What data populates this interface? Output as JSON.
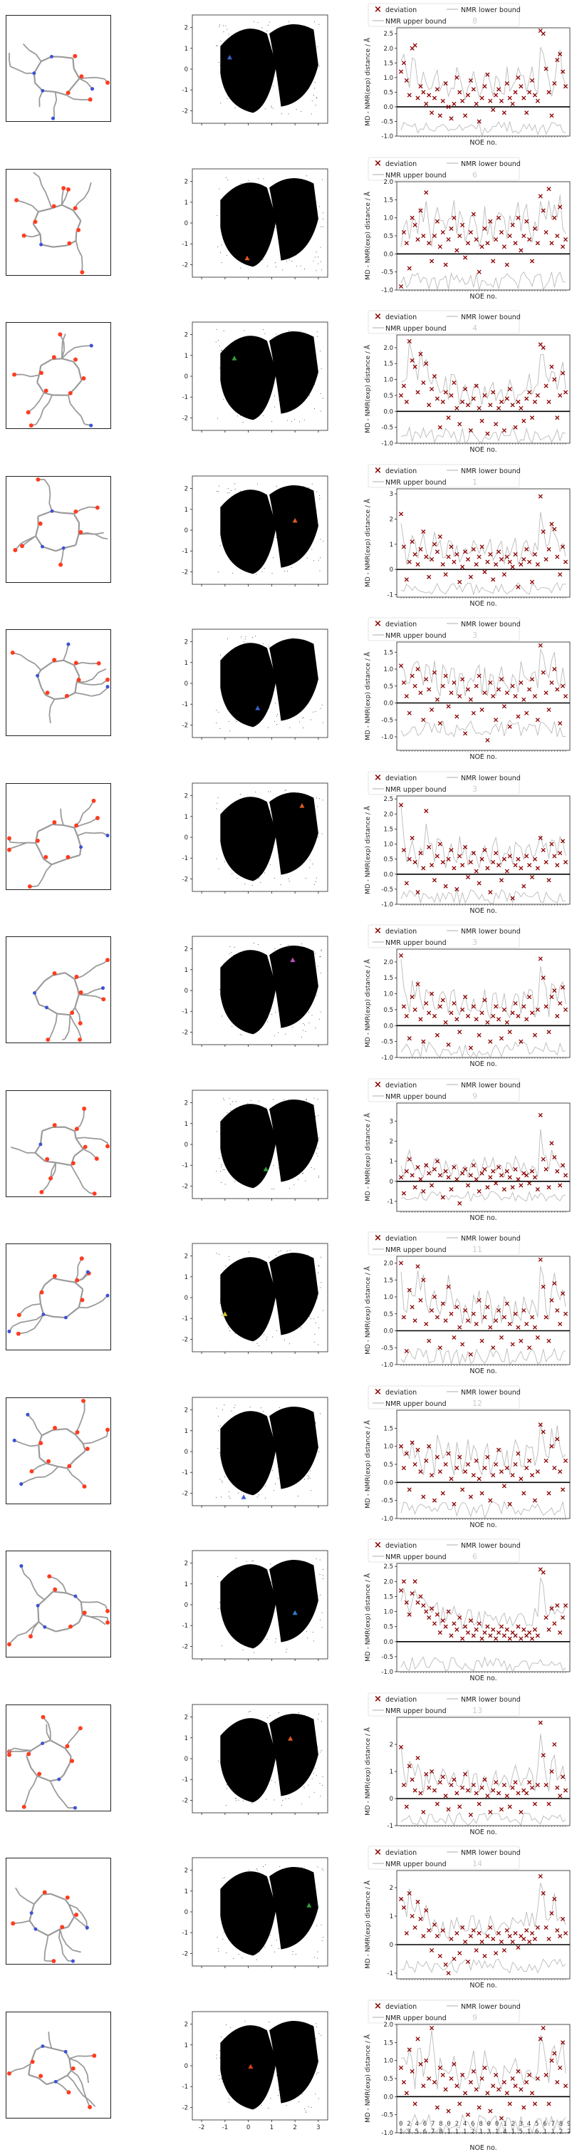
{
  "colors": {
    "deviation": "#8b0000",
    "bound_line": "#bbbbbb",
    "zero_line": "#000000",
    "density": "#000000",
    "atom_red": "#ff3b1f",
    "atom_blue": "#3d52d5",
    "bond": "#9a9a9a"
  },
  "legend": {
    "deviation": "deviation",
    "lower": "NMR lower bound",
    "upper": "NMR upper bound"
  },
  "axes": {
    "noe_xlabel": "NOE no.",
    "noe_ylabel": "MD - NMR(exp) distance / Å"
  },
  "fes_ticks_y": [
    "2",
    "1",
    "0",
    "-1",
    "-2"
  ],
  "fes_ticks_x": [
    "-2",
    "-1",
    "0",
    "1",
    "2",
    "3"
  ],
  "last_xtick_rows": [
    "0 2 4 6 7 8 0 2 4 6 8 0 0 1 2 3 4 5 6 7 8 9 1 1 2 2 2 2 2 2 2 7 7 8 0 0",
    "1 3 5 6 7 8 1 1 1 2 1 3 1 4 1 5 1 6 1 1 2 2 2 2 2 2 2 7 7 2 8 0 0"
  ],
  "chart_data": [
    {
      "type": "scatter",
      "panel": 1,
      "title_overlay": "8",
      "marker_color": "#3a62c9",
      "marker_xy": [
        -0.8,
        0.55
      ],
      "ylim": [
        -1.0,
        2.7
      ],
      "yticks": [
        "2.5",
        "2.0",
        "1.5",
        "1.0",
        "0.5",
        "0.0",
        "-0.5",
        "-1.0"
      ],
      "deviation": [
        1.2,
        1.5,
        0.9,
        0.4,
        2.0,
        2.1,
        0.3,
        0.7,
        0.5,
        0.1,
        0.4,
        -0.2,
        0.3,
        0.6,
        -0.3,
        0.2,
        0.8,
        0.0,
        -0.4,
        0.1,
        1.0,
        0.5,
        0.2,
        -0.3,
        0.4,
        0.9,
        0.6,
        0.1,
        -0.5,
        0.3,
        0.7,
        1.1,
        0.2,
        -0.1,
        0.4,
        0.6,
        0.2,
        -0.2,
        0.8,
        0.3,
        0.1,
        0.5,
        1.0,
        0.7,
        0.3,
        -0.2,
        0.5,
        0.9,
        0.4,
        0.2,
        2.6,
        2.5,
        1.3,
        0.5,
        -0.3,
        0.8,
        1.6,
        1.8,
        1.2,
        0.7
      ]
    },
    {
      "type": "scatter",
      "panel": 2,
      "title_overlay": "6",
      "marker_color": "#e05a20",
      "marker_xy": [
        -0.05,
        -1.7
      ],
      "ylim": [
        -1.0,
        2.0
      ],
      "yticks": [
        "2.0",
        "1.5",
        "1.0",
        "0.5",
        "0.0",
        "-0.5",
        "-1.0"
      ],
      "deviation": [
        -0.9,
        0.6,
        0.3,
        -0.4,
        1.0,
        0.8,
        0.4,
        1.2,
        0.5,
        1.7,
        0.3,
        -0.2,
        0.5,
        0.9,
        0.2,
        0.6,
        -0.3,
        0.4,
        0.7,
        1.0,
        0.1,
        0.5,
        0.8,
        -0.1,
        0.3,
        0.6,
        1.1,
        0.4,
        -0.5,
        0.2,
        0.7,
        0.3,
        0.9,
        -0.2,
        0.4,
        1.0,
        0.6,
        0.2,
        -0.3,
        0.5,
        0.8,
        0.3,
        1.0,
        0.1,
        0.5,
        0.9,
        0.4,
        -0.2,
        0.7,
        0.3,
        1.6,
        1.2,
        0.6,
        1.8,
        0.3,
        1.0,
        0.5,
        1.3,
        0.2,
        0.4
      ]
    },
    {
      "type": "scatter",
      "panel": 3,
      "title_overlay": "4",
      "marker_color": "#2ea03a",
      "marker_xy": [
        -0.6,
        0.85
      ],
      "ylim": [
        -1.0,
        2.4
      ],
      "yticks": [
        "2.0",
        "1.5",
        "1.0",
        "0.5",
        "0.0",
        "-0.5",
        "-1.0"
      ],
      "deviation": [
        0.5,
        0.8,
        0.3,
        2.2,
        1.6,
        1.4,
        0.6,
        1.8,
        0.9,
        1.5,
        0.2,
        0.7,
        1.1,
        0.4,
        -0.5,
        0.3,
        0.6,
        -0.2,
        0.5,
        0.9,
        0.1,
        -0.4,
        0.3,
        0.7,
        0.2,
        -0.6,
        0.4,
        0.8,
        0.1,
        -0.3,
        0.5,
        -0.7,
        0.2,
        0.6,
        -0.4,
        0.1,
        0.3,
        -0.6,
        0.4,
        0.7,
        0.2,
        -0.5,
        0.3,
        0.1,
        -0.3,
        0.4,
        0.6,
        -0.2,
        0.3,
        0.5,
        2.1,
        2.0,
        0.8,
        0.3,
        1.4,
        1.0,
        -0.2,
        0.5,
        1.2,
        0.6
      ]
    },
    {
      "type": "scatter",
      "panel": 4,
      "title_overlay": "1",
      "marker_color": "#e05a20",
      "marker_xy": [
        2.0,
        0.45
      ],
      "ylim": [
        -1.1,
        3.2
      ],
      "yticks": [
        "3",
        "2",
        "1",
        "0",
        "-1"
      ],
      "deviation": [
        2.2,
        0.9,
        -0.4,
        0.3,
        1.1,
        0.6,
        0.2,
        0.8,
        1.5,
        0.5,
        -0.3,
        0.4,
        1.0,
        0.7,
        1.3,
        0.2,
        -0.2,
        0.5,
        0.9,
        0.3,
        0.6,
        -0.5,
        0.1,
        0.7,
        0.4,
        -0.3,
        0.8,
        0.2,
        0.5,
        0.9,
        -0.1,
        0.3,
        0.6,
        -0.4,
        0.2,
        0.7,
        0.4,
        -0.2,
        0.5,
        0.3,
        0.1,
        0.6,
        -0.7,
        0.2,
        0.4,
        0.8,
        0.3,
        -0.5,
        0.6,
        0.2,
        2.9,
        1.5,
        0.4,
        0.8,
        1.8,
        1.6,
        0.5,
        -0.2,
        0.9,
        0.3
      ]
    },
    {
      "type": "scatter",
      "panel": 5,
      "title_overlay": "3",
      "marker_color": "#3a62c9",
      "marker_xy": [
        0.4,
        -1.2
      ],
      "ylim": [
        -1.4,
        1.8
      ],
      "yticks": [
        "1.5",
        "1.0",
        "0.5",
        "0.0",
        "-0.5",
        "-1.0"
      ],
      "deviation": [
        1.1,
        0.6,
        0.2,
        -0.3,
        0.8,
        0.5,
        1.0,
        0.3,
        -0.5,
        0.7,
        0.4,
        -0.2,
        0.9,
        0.1,
        -0.6,
        0.5,
        0.8,
        -0.1,
        0.3,
        0.6,
        -0.4,
        0.2,
        0.7,
        -0.9,
        0.4,
        0.1,
        -0.3,
        0.5,
        0.8,
        -0.2,
        0.3,
        -1.1,
        0.6,
        0.2,
        -0.5,
        0.4,
        0.7,
        -0.1,
        0.3,
        -0.7,
        0.5,
        0.2,
        -0.4,
        0.6,
        0.1,
        -0.3,
        0.4,
        0.7,
        0.2,
        -0.5,
        1.7,
        0.9,
        0.3,
        -0.2,
        0.6,
        1.0,
        0.4,
        -0.6,
        0.5,
        0.2
      ]
    },
    {
      "type": "scatter",
      "panel": 6,
      "title_overlay": "3",
      "marker_color": "#e05a20",
      "marker_xy": [
        2.3,
        1.5
      ],
      "ylim": [
        -1.0,
        2.6
      ],
      "yticks": [
        "2.5",
        "2.0",
        "1.5",
        "1.0",
        "0.5",
        "0.0",
        "-0.5",
        "-1.0"
      ],
      "deviation": [
        2.3,
        0.8,
        -0.3,
        0.5,
        1.2,
        0.4,
        -0.6,
        0.7,
        0.2,
        2.1,
        0.9,
        0.3,
        -0.2,
        0.6,
        1.0,
        0.4,
        -0.4,
        0.5,
        0.8,
        0.2,
        -0.5,
        0.6,
        0.3,
        0.9,
        -0.1,
        0.4,
        0.7,
        0.1,
        -0.3,
        0.5,
        0.8,
        0.2,
        -0.6,
        0.4,
        0.7,
        0.3,
        -0.2,
        0.5,
        0.1,
        0.6,
        -0.8,
        0.3,
        0.5,
        0.2,
        -0.4,
        0.6,
        0.3,
        -0.1,
        0.5,
        0.2,
        1.2,
        0.8,
        0.4,
        -0.2,
        1.0,
        0.6,
        0.3,
        0.7,
        1.1,
        0.4
      ]
    },
    {
      "type": "scatter",
      "panel": 7,
      "title_overlay": "3",
      "marker_color": "#c050c0",
      "marker_xy": [
        1.9,
        1.45
      ],
      "ylim": [
        -1.0,
        2.4
      ],
      "yticks": [
        "2.0",
        "1.5",
        "1.0",
        "0.5",
        "0.0",
        "-0.5",
        "-1.0"
      ],
      "deviation": [
        2.2,
        0.6,
        0.3,
        -0.4,
        0.9,
        0.5,
        1.3,
        0.2,
        -0.5,
        0.7,
        0.4,
        1.0,
        0.3,
        -0.3,
        0.6,
        0.8,
        0.1,
        -0.6,
        0.4,
        0.7,
        0.2,
        -0.2,
        0.5,
        0.9,
        0.3,
        -0.7,
        0.6,
        0.2,
        -0.3,
        0.4,
        0.8,
        0.1,
        -0.5,
        0.3,
        0.6,
        0.2,
        -0.4,
        0.5,
        0.1,
        -0.2,
        0.4,
        0.7,
        0.3,
        -0.5,
        0.6,
        0.2,
        0.9,
        0.4,
        -0.3,
        0.5,
        2.1,
        1.5,
        0.6,
        -0.2,
        0.9,
        1.1,
        0.3,
        0.7,
        1.2,
        0.5
      ]
    },
    {
      "type": "scatter",
      "panel": 8,
      "title_overlay": "9",
      "marker_color": "#2ea03a",
      "marker_xy": [
        0.75,
        -1.2
      ],
      "ylim": [
        -1.5,
        3.9
      ],
      "yticks": [
        "3",
        "2",
        "1",
        "0",
        "-1"
      ],
      "deviation": [
        0.2,
        -0.6,
        0.5,
        1.1,
        0.3,
        -0.3,
        0.7,
        0.1,
        -0.5,
        0.8,
        0.4,
        -0.2,
        0.6,
        1.0,
        0.3,
        -0.8,
        0.5,
        0.2,
        -0.4,
        0.7,
        0.1,
        -1.1,
        0.4,
        0.6,
        -0.2,
        0.3,
        0.8,
        0.1,
        -0.5,
        0.4,
        0.6,
        -0.3,
        0.2,
        0.5,
        -0.1,
        0.7,
        0.3,
        -0.4,
        0.5,
        0.2,
        -0.3,
        0.6,
        0.1,
        -0.2,
        0.4,
        0.3,
        -0.1,
        0.5,
        0.2,
        -0.4,
        3.3,
        1.1,
        0.6,
        -0.3,
        1.9,
        1.2,
        0.5,
        -0.2,
        0.8,
        0.3
      ]
    },
    {
      "type": "scatter",
      "panel": 9,
      "title_overlay": "11",
      "marker_color": "#d8c02a",
      "marker_xy": [
        -1.0,
        -0.8
      ],
      "ylim": [
        -1.0,
        2.2
      ],
      "yticks": [
        "2.0",
        "1.5",
        "1.0",
        "0.5",
        "0.0",
        "-0.5",
        "-1.0"
      ],
      "deviation": [
        2.0,
        0.4,
        -0.6,
        1.2,
        0.7,
        0.3,
        1.9,
        0.9,
        1.5,
        0.2,
        -0.3,
        0.6,
        1.0,
        0.4,
        -0.5,
        0.8,
        0.3,
        1.3,
        0.5,
        -0.2,
        0.7,
        0.1,
        -0.4,
        0.6,
        0.3,
        -0.7,
        0.5,
        0.2,
        0.9,
        -0.3,
        0.4,
        0.7,
        0.1,
        -0.5,
        0.3,
        0.6,
        -0.2,
        0.4,
        0.8,
        0.2,
        -0.4,
        0.5,
        0.1,
        -0.3,
        0.6,
        0.2,
        -0.5,
        0.4,
        0.1,
        -0.2,
        2.1,
        1.3,
        0.4,
        -0.3,
        0.9,
        1.4,
        0.6,
        0.2,
        1.1,
        0.5
      ]
    },
    {
      "type": "scatter",
      "panel": 10,
      "title_overlay": "12",
      "marker_color": "#3a62c9",
      "marker_xy": [
        -0.2,
        -2.2
      ],
      "ylim": [
        -1.0,
        2.0
      ],
      "yticks": [
        "1.5",
        "1.0",
        "0.5",
        "0.0",
        "-0.5",
        "-1.0"
      ],
      "deviation": [
        1.0,
        0.4,
        0.8,
        -0.2,
        1.1,
        0.5,
        0.9,
        0.3,
        -0.4,
        0.6,
        1.0,
        0.2,
        -0.5,
        0.7,
        0.3,
        -0.3,
        0.5,
        0.8,
        0.1,
        -0.6,
        0.4,
        0.7,
        -0.2,
        0.3,
        0.5,
        -0.4,
        0.2,
        0.6,
        0.1,
        -0.3,
        0.4,
        0.7,
        -0.5,
        0.2,
        0.5,
        0.9,
        0.3,
        -0.1,
        0.4,
        -0.6,
        0.2,
        0.5,
        0.8,
        0.1,
        -0.3,
        0.4,
        0.6,
        0.2,
        -0.5,
        0.3,
        1.6,
        1.4,
        0.6,
        -0.3,
        1.0,
        0.4,
        1.2,
        0.3,
        -0.2,
        0.6
      ]
    },
    {
      "type": "scatter",
      "panel": 11,
      "title_overlay": "6",
      "marker_color": "#2b7fd0",
      "marker_xy": [
        2.0,
        -0.4
      ],
      "ylim": [
        -1.0,
        2.6
      ],
      "yticks": [
        "2.5",
        "2.0",
        "1.5",
        "1.0",
        "0.5",
        "0.0",
        "-0.5",
        "-1.0"
      ],
      "deviation": [
        1.7,
        2.0,
        1.3,
        0.9,
        1.6,
        2.0,
        1.3,
        1.5,
        1.2,
        1.0,
        0.8,
        1.1,
        0.6,
        0.9,
        0.3,
        0.7,
        0.5,
        1.0,
        0.2,
        0.6,
        0.4,
        0.8,
        0.1,
        0.5,
        0.3,
        0.7,
        0.2,
        0.4,
        0.6,
        0.1,
        0.3,
        0.5,
        0.2,
        0.4,
        0.1,
        0.3,
        0.5,
        0.2,
        0.4,
        0.1,
        0.3,
        0.2,
        0.5,
        0.1,
        0.4,
        0.2,
        0.3,
        0.1,
        0.4,
        0.2,
        2.4,
        2.3,
        0.8,
        0.4,
        1.1,
        0.6,
        1.2,
        0.3,
        0.8,
        1.2
      ]
    },
    {
      "type": "scatter",
      "panel": 12,
      "title_overlay": "13",
      "marker_color": "#e05a20",
      "marker_xy": [
        1.8,
        0.95
      ],
      "ylim": [
        -1.0,
        3.0
      ],
      "yticks": [
        "2",
        "1",
        "0",
        "-1"
      ],
      "deviation": [
        1.9,
        0.5,
        -0.3,
        1.2,
        0.7,
        0.3,
        1.5,
        0.2,
        -0.5,
        0.9,
        0.4,
        1.0,
        0.3,
        -0.2,
        0.6,
        0.8,
        0.1,
        -0.4,
        0.5,
        0.7,
        0.2,
        -0.3,
        0.4,
        0.9,
        0.3,
        -0.6,
        0.5,
        0.2,
        -0.2,
        0.4,
        0.7,
        0.1,
        -0.5,
        0.3,
        0.6,
        0.2,
        -0.4,
        0.5,
        0.1,
        -0.3,
        0.4,
        0.6,
        0.2,
        -0.5,
        0.3,
        0.2,
        0.6,
        0.4,
        -0.2,
        0.5,
        2.8,
        1.6,
        0.5,
        -0.2,
        1.0,
        2.0,
        0.4,
        0.1,
        0.8,
        0.3
      ]
    },
    {
      "type": "scatter",
      "panel": 13,
      "title_overlay": "14",
      "marker_color": "#2ea03a",
      "marker_xy": [
        2.6,
        0.3
      ],
      "ylim": [
        -1.2,
        2.6
      ],
      "yticks": [
        "2",
        "1",
        "0",
        "-1"
      ],
      "deviation": [
        1.6,
        1.3,
        0.4,
        1.8,
        1.0,
        0.6,
        1.5,
        0.9,
        0.3,
        1.2,
        0.5,
        -0.2,
        0.7,
        0.3,
        -0.4,
        0.5,
        -0.7,
        -1.0,
        0.2,
        -0.5,
        0.4,
        -0.3,
        0.6,
        0.1,
        -0.6,
        0.3,
        0.5,
        -0.2,
        0.4,
        0.1,
        -0.4,
        0.3,
        0.6,
        0.2,
        -0.3,
        0.4,
        0.1,
        -0.2,
        0.5,
        0.3,
        0.1,
        0.4,
        -0.1,
        0.3,
        0.2,
        0.5,
        0.1,
        0.4,
        0.2,
        0.6,
        2.4,
        1.8,
        0.6,
        0.2,
        1.1,
        1.6,
        0.5,
        0.3,
        0.9,
        0.4
      ]
    },
    {
      "type": "scatter",
      "panel": 14,
      "title_overlay": "9",
      "marker_color": "#e03a20",
      "marker_xy": [
        0.1,
        -0.05
      ],
      "ylim": [
        -1.0,
        2.0
      ],
      "yticks": [
        "2.0",
        "1.5",
        "1.0",
        "0.5",
        "0.0",
        "-0.5",
        "-1.0"
      ],
      "deviation": [
        0.8,
        0.4,
        0.1,
        1.3,
        0.7,
        -0.2,
        1.6,
        0.9,
        0.3,
        1.0,
        0.5,
        1.9,
        0.4,
        -0.3,
        0.8,
        0.6,
        0.2,
        -0.4,
        0.5,
        0.9,
        0.3,
        -0.2,
        0.6,
        0.1,
        -0.5,
        0.4,
        0.7,
        0.2,
        -0.3,
        0.5,
        0.8,
        0.1,
        -0.4,
        0.3,
        0.6,
        0.2,
        -0.6,
        0.4,
        0.1,
        -0.2,
        0.5,
        0.3,
        0.7,
        0.2,
        -0.3,
        0.4,
        0.6,
        0.1,
        -0.2,
        0.5,
        1.6,
        1.9,
        0.6,
        -0.2,
        1.0,
        1.2,
        0.4,
        0.8,
        1.5,
        0.3
      ]
    }
  ]
}
